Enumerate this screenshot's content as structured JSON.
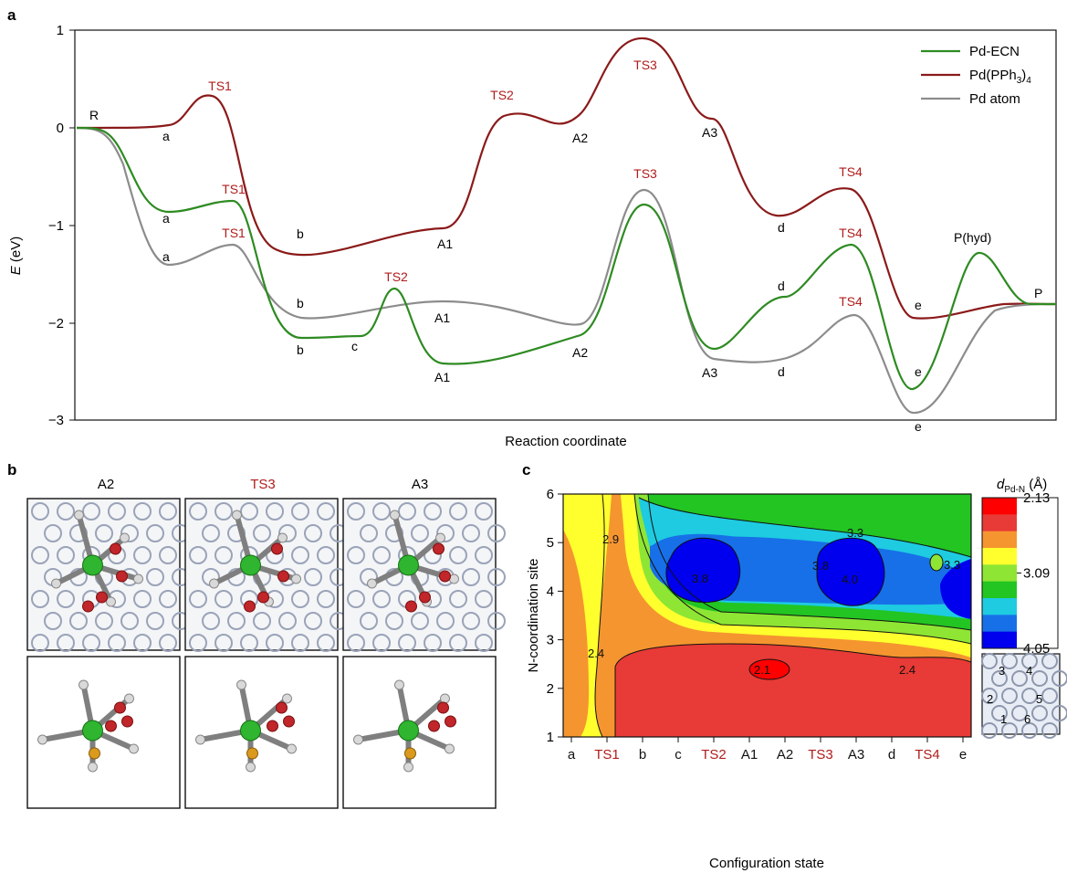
{
  "panel_labels": {
    "a": "a",
    "b": "b",
    "c": "c"
  },
  "colors": {
    "ecn": "#2e8b22",
    "pph3": "#8b1a1a",
    "atom": "#8c8c8c",
    "ts_label": "#b01c1c",
    "label": "#111111"
  },
  "panel_a": {
    "ylabel_italic": "E",
    "ylabel_rest": " (eV)",
    "xlabel": "Reaction coordinate",
    "yticks": [
      "1",
      "0",
      "−1",
      "−2",
      "−3"
    ],
    "legend": {
      "ecn": "Pd-ECN",
      "pph3_main": "Pd(PPh",
      "pph3_sub": "3",
      "pph3_close": ")",
      "pph3_sub2": "4",
      "atom": "Pd atom"
    },
    "point_labels": {
      "R": "R",
      "P": "P",
      "Phyd": "P(hyd)",
      "pph3": {
        "a": "a",
        "TS1": "TS1",
        "b": "b",
        "A1": "A1",
        "TS2": "TS2",
        "A2": "A2",
        "TS3": "TS3",
        "A3": "A3",
        "d": "d",
        "TS4": "TS4",
        "e": "e"
      },
      "ecn": {
        "a": "a",
        "TS1": "TS1",
        "b": "b",
        "c": "c",
        "TS2": "TS2",
        "A1": "A1",
        "A2": "A2",
        "TS3": "TS3",
        "A3": "A3",
        "d": "d",
        "TS4": "TS4",
        "e": "e"
      },
      "atom": {
        "a": "a",
        "TS1": "TS1",
        "b": "b",
        "A1": "A1",
        "A3": "A3",
        "d": "d",
        "TS4": "TS4",
        "e": "e"
      }
    }
  },
  "panel_b": {
    "columns": [
      {
        "label": "A2",
        "is_ts": false
      },
      {
        "label": "TS3",
        "is_ts": true
      },
      {
        "label": "A3",
        "is_ts": false
      }
    ]
  },
  "panel_c": {
    "ylabel": "N-coordination site",
    "xlabel": "Configuration state",
    "colorbar_title": "d",
    "colorbar_sub": "Pd-N",
    "colorbar_unit": " (Å)",
    "colorbar_ticks": [
      "2.13",
      "3.09",
      "4.05"
    ],
    "inset_sites": [
      "1",
      "2",
      "3",
      "4",
      "5",
      "6"
    ],
    "contour_labels": [
      "2.9",
      "3.3",
      "3.8",
      "3.8",
      "4.0",
      "3.3",
      "2.4",
      "2.1",
      "2.4"
    ]
  },
  "chart_data": [
    {
      "type": "line",
      "panel": "a",
      "ylim": [
        -3,
        1
      ],
      "xlabel": "Reaction coordinate",
      "ylabel": "E (eV)",
      "legend_position": "top-right",
      "series": [
        {
          "name": "Pd-ECN",
          "points": [
            {
              "label": "R",
              "y": 0.0
            },
            {
              "label": "a",
              "y": -0.86
            },
            {
              "label": "TS1",
              "y": -0.75
            },
            {
              "label": "b",
              "y": -2.14
            },
            {
              "label": "c",
              "y": -2.12
            },
            {
              "label": "TS2",
              "y": -1.65
            },
            {
              "label": "A1",
              "y": -2.42
            },
            {
              "label": "A2",
              "y": -2.12
            },
            {
              "label": "TS3",
              "y": -0.79
            },
            {
              "label": "A3",
              "y": -2.26
            },
            {
              "label": "d",
              "y": -1.75
            },
            {
              "label": "TS4",
              "y": -1.2
            },
            {
              "label": "e",
              "y": -2.68
            },
            {
              "label": "P(hyd)",
              "y": -1.27
            },
            {
              "label": "P",
              "y": -1.82
            }
          ]
        },
        {
          "name": "Pd(PPh3)4",
          "points": [
            {
              "label": "R",
              "y": 0.0
            },
            {
              "label": "a",
              "y": 0.02
            },
            {
              "label": "TS1",
              "y": 0.33
            },
            {
              "label": "b",
              "y": -1.24
            },
            {
              "label": "A1",
              "y": -1.03
            },
            {
              "label": "TS2",
              "y": 0.17
            },
            {
              "label": "A2",
              "y": 0.06
            },
            {
              "label": "TS3",
              "y": 0.92
            },
            {
              "label": "A3",
              "y": 0.06
            },
            {
              "label": "d",
              "y": -0.9
            },
            {
              "label": "TS4",
              "y": -0.61
            },
            {
              "label": "e",
              "y": -1.95
            },
            {
              "label": "P",
              "y": -1.82
            }
          ]
        },
        {
          "name": "Pd atom",
          "points": [
            {
              "label": "R",
              "y": 0.0
            },
            {
              "label": "a",
              "y": -1.4
            },
            {
              "label": "TS1",
              "y": -1.19
            },
            {
              "label": "b",
              "y": -1.96
            },
            {
              "label": "A1",
              "y": -1.79
            },
            {
              "label": "A2",
              "y": -2.07
            },
            {
              "label": "TS3",
              "y": -0.64
            },
            {
              "label": "A3",
              "y": -2.38
            },
            {
              "label": "d",
              "y": -2.38
            },
            {
              "label": "TS4",
              "y": -1.91
            },
            {
              "label": "e",
              "y": -2.93
            },
            {
              "label": "P",
              "y": -1.82
            }
          ]
        }
      ]
    },
    {
      "type": "heatmap",
      "panel": "c",
      "x_categories": [
        "a",
        "TS1",
        "b",
        "c",
        "TS2",
        "A1",
        "A2",
        "TS3",
        "A3",
        "d",
        "TS4",
        "e"
      ],
      "y_ticks": [
        1,
        2,
        3,
        4,
        5,
        6
      ],
      "ylim": [
        1,
        6
      ],
      "xlabel": "Configuration state",
      "ylabel": "N-coordination site",
      "colorbar": {
        "label": "dPd-N (Å)",
        "min": 2.13,
        "mid": 3.09,
        "max": 4.05,
        "colors": [
          "#ff0000",
          "#e83a36",
          "#f5952f",
          "#ffff2e",
          "#8fe534",
          "#22c522",
          "#1ecbe1",
          "#1770e8",
          "#0000ee"
        ]
      }
    }
  ]
}
